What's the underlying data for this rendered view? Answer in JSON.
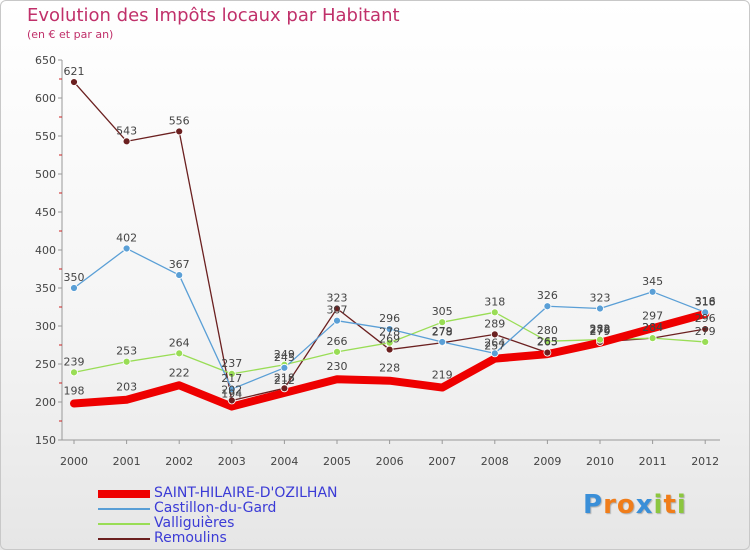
{
  "chart_data": {
    "type": "line",
    "title": "Evolution des Impôts locaux par Habitant",
    "subtitle": "(en € et par an)",
    "xlabel": "",
    "ylabel": "",
    "ylim": [
      150,
      650
    ],
    "yticks": [
      "150",
      "200",
      "250",
      "300",
      "350",
      "400",
      "450",
      "500",
      "550",
      "600",
      "650"
    ],
    "categories": [
      "2000",
      "2001",
      "2002",
      "2003",
      "2004",
      "2005",
      "2006",
      "2007",
      "2008",
      "2009",
      "2010",
      "2011",
      "2012"
    ],
    "series": [
      {
        "name": "SAINT-HILAIRE-D'OZILHAN",
        "color": "#ee0000",
        "values": [
          198,
          203,
          222,
          194,
          212,
          230,
          228,
          219,
          257,
          263,
          278,
          297,
          316
        ],
        "labels": [
          "198",
          "203",
          "222",
          "194",
          "212",
          "230",
          "228",
          "219",
          "257",
          "263",
          "278",
          "297",
          "316"
        ]
      },
      {
        "name": "Castillon-du-Gard",
        "color": "#5a9fd6",
        "values": [
          350,
          402,
          367,
          217,
          245,
          307,
          296,
          279,
          264,
          326,
          323,
          345,
          318
        ],
        "labels": [
          "350",
          "402",
          "367",
          "217",
          "245",
          "307",
          "296",
          "279",
          "264",
          "326",
          "323",
          "345",
          "318"
        ]
      },
      {
        "name": "Valliguières",
        "color": "#99dd55",
        "values": [
          239,
          253,
          264,
          237,
          249,
          266,
          278,
          305,
          318,
          280,
          282,
          284,
          279
        ],
        "labels": [
          "239",
          "253",
          "264",
          "237",
          "249",
          "266",
          "278",
          "305",
          "318",
          "280",
          "282",
          "284",
          "279"
        ]
      },
      {
        "name": "Remoulins",
        "color": "#6b2020",
        "values": [
          621,
          543,
          556,
          202,
          218,
          323,
          269,
          278,
          289,
          265,
          279,
          284,
          296
        ],
        "labels": [
          "621",
          "543",
          "556",
          "202",
          "218",
          "323",
          "269",
          "278",
          "289",
          "265",
          "279",
          "284",
          "296"
        ]
      }
    ]
  },
  "legend": {
    "items": [
      {
        "label": "SAINT-HILAIRE-D'OZILHAN",
        "color": "#ee0000"
      },
      {
        "label": "Castillon-du-Gard",
        "color": "#5a9fd6"
      },
      {
        "label": "Valliguières",
        "color": "#99dd55"
      },
      {
        "label": "Remoulins",
        "color": "#6b2020"
      }
    ]
  },
  "logo": {
    "letters": [
      "P",
      "r",
      "o",
      "x",
      "i",
      "t",
      "i"
    ],
    "colors": [
      "#3a8fd8",
      "#f07d1a",
      "#f07d1a",
      "#3a8fd8",
      "#8cc63f",
      "#f07d1a",
      "#8cc63f"
    ]
  }
}
